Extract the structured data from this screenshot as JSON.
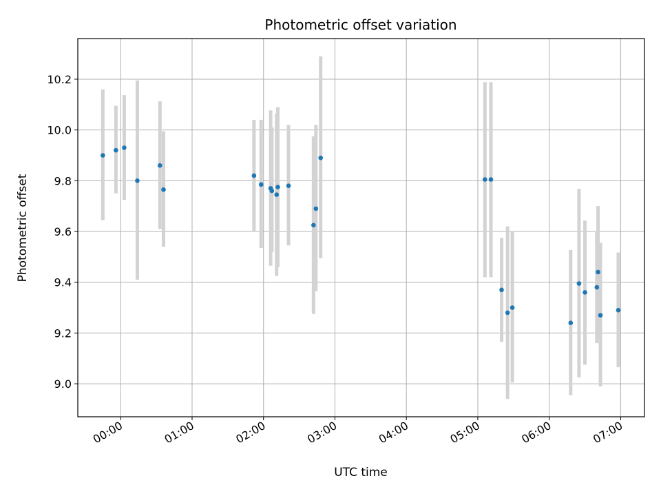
{
  "chart_data": {
    "type": "scatter",
    "title": "Photometric offset variation",
    "xlabel": "UTC time",
    "ylabel": "Photometric offset",
    "x_ticks": [
      "00:00",
      "01:00",
      "02:00",
      "03:00",
      "04:00",
      "05:00",
      "06:00",
      "07:00"
    ],
    "y_ticks": [
      "9.0",
      "9.2",
      "9.4",
      "9.6",
      "9.8",
      "10.0",
      "10.2"
    ],
    "xlim": [
      "23:24",
      "07:20"
    ],
    "ylim": [
      8.87,
      10.36
    ],
    "grid": true,
    "marker_color": "#1f77b4",
    "errorbar_color": "#d3d3d3",
    "points": [
      {
        "x": "23:45",
        "y": 9.9,
        "low": 9.645,
        "high": 10.16
      },
      {
        "x": "23:56",
        "y": 9.92,
        "low": 9.75,
        "high": 10.095
      },
      {
        "x": "00:03",
        "y": 9.93,
        "low": 9.725,
        "high": 10.137
      },
      {
        "x": "00:14",
        "y": 9.8,
        "low": 9.41,
        "high": 10.195
      },
      {
        "x": "00:33",
        "y": 9.86,
        "low": 9.61,
        "high": 10.113
      },
      {
        "x": "00:36",
        "y": 9.765,
        "low": 9.54,
        "high": 9.995
      },
      {
        "x": "01:52",
        "y": 9.82,
        "low": 9.6,
        "high": 10.04
      },
      {
        "x": "01:58",
        "y": 9.785,
        "low": 9.535,
        "high": 10.04
      },
      {
        "x": "02:06",
        "y": 9.77,
        "low": 9.465,
        "high": 10.077
      },
      {
        "x": "02:07",
        "y": 9.76,
        "low": 9.52,
        "high": 10.01
      },
      {
        "x": "02:11",
        "y": 9.745,
        "low": 9.425,
        "high": 10.065
      },
      {
        "x": "02:12",
        "y": 9.775,
        "low": 9.46,
        "high": 10.09
      },
      {
        "x": "02:21",
        "y": 9.78,
        "low": 9.545,
        "high": 10.02
      },
      {
        "x": "02:42",
        "y": 9.625,
        "low": 9.275,
        "high": 9.975
      },
      {
        "x": "02:44",
        "y": 9.69,
        "low": 9.365,
        "high": 10.02
      },
      {
        "x": "02:48",
        "y": 9.89,
        "low": 9.495,
        "high": 10.29
      },
      {
        "x": "05:06",
        "y": 9.805,
        "low": 9.42,
        "high": 10.188
      },
      {
        "x": "05:11",
        "y": 9.805,
        "low": 9.42,
        "high": 10.188
      },
      {
        "x": "05:20",
        "y": 9.37,
        "low": 9.165,
        "high": 9.575
      },
      {
        "x": "05:25",
        "y": 9.28,
        "low": 8.94,
        "high": 9.62
      },
      {
        "x": "05:29",
        "y": 9.3,
        "low": 9.005,
        "high": 9.6
      },
      {
        "x": "06:18",
        "y": 9.24,
        "low": 8.955,
        "high": 9.527
      },
      {
        "x": "06:25",
        "y": 9.395,
        "low": 9.025,
        "high": 9.768
      },
      {
        "x": "06:30",
        "y": 9.36,
        "low": 9.075,
        "high": 9.643
      },
      {
        "x": "06:40",
        "y": 9.38,
        "low": 9.16,
        "high": 9.6
      },
      {
        "x": "06:41",
        "y": 9.44,
        "low": 9.18,
        "high": 9.7
      },
      {
        "x": "06:43",
        "y": 9.27,
        "low": 8.99,
        "high": 9.555
      },
      {
        "x": "06:58",
        "y": 9.29,
        "low": 9.065,
        "high": 9.517
      }
    ]
  }
}
